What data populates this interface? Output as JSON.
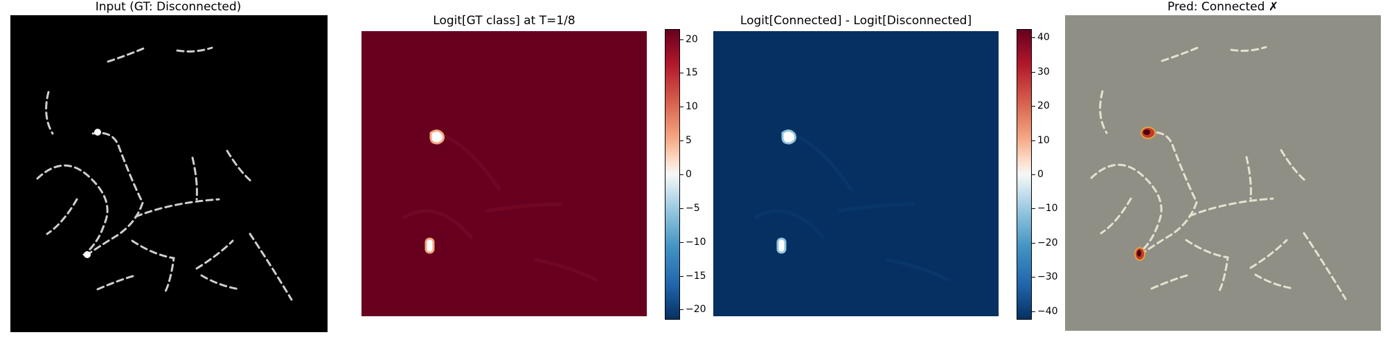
{
  "panels": [
    {
      "title": "Input (GT: Disconnected)"
    },
    {
      "title": "Logit[GT class] at T=1/8"
    },
    {
      "title": "Logit[Connected] - Logit[Disconnected]"
    },
    {
      "title": "Pred: Connected ✗"
    }
  ],
  "colorbars": [
    {
      "ticks": [
        "20",
        "15",
        "10",
        "5",
        "0",
        "−5",
        "−10",
        "−15",
        "−20"
      ],
      "range": [
        -21.5,
        21.5
      ],
      "colormap": "RdBu_r"
    },
    {
      "ticks": [
        "40",
        "30",
        "20",
        "10",
        "0",
        "−10",
        "−20",
        "−30",
        "−40"
      ],
      "range": [
        -42.5,
        42.5
      ],
      "colormap": "RdBu_r"
    }
  ],
  "colors": {
    "input_bg": "#000000",
    "dash": "#cfcfcf",
    "panel2_fill": "#67001f",
    "panel3_fill": "#053061",
    "overlay_bg": "#8f8f86",
    "overlay_dash": "#e6e2cf"
  }
}
